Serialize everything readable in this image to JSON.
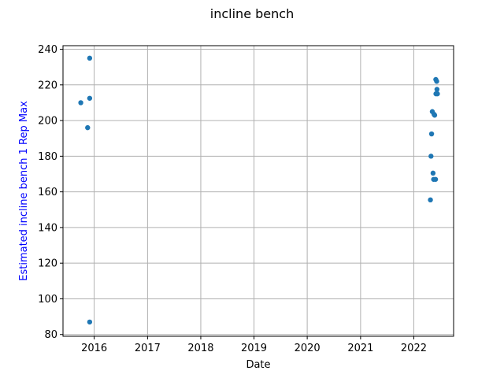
{
  "chart_data": {
    "type": "scatter",
    "title": "incline bench",
    "xlabel": "Date",
    "ylabel": "Estimated incline bench 1 Rep Max",
    "ylabel_color": "#0000ff",
    "point_color": "#1f77b4",
    "xlim": [
      "2015-06-01",
      "2022-10-01"
    ],
    "ylim": [
      79,
      242
    ],
    "x_ticks": [
      {
        "value": "2016-01-01",
        "label": "2016"
      },
      {
        "value": "2017-01-01",
        "label": "2017"
      },
      {
        "value": "2018-01-01",
        "label": "2018"
      },
      {
        "value": "2019-01-01",
        "label": "2019"
      },
      {
        "value": "2020-01-01",
        "label": "2020"
      },
      {
        "value": "2021-01-01",
        "label": "2021"
      },
      {
        "value": "2022-01-01",
        "label": "2022"
      }
    ],
    "y_ticks": [
      80,
      100,
      120,
      140,
      160,
      180,
      200,
      220,
      240
    ],
    "grid": true,
    "legend": "none",
    "points": [
      {
        "x": "2015-10-01",
        "y": 210
      },
      {
        "x": "2015-11-17",
        "y": 196
      },
      {
        "x": "2015-12-01",
        "y": 235
      },
      {
        "x": "2015-12-01",
        "y": 212.5
      },
      {
        "x": "2015-12-01",
        "y": 87
      },
      {
        "x": "2022-04-25",
        "y": 155.5
      },
      {
        "x": "2022-04-29",
        "y": 180
      },
      {
        "x": "2022-05-03",
        "y": 192.5
      },
      {
        "x": "2022-05-08",
        "y": 205
      },
      {
        "x": "2022-05-13",
        "y": 170.5
      },
      {
        "x": "2022-05-17",
        "y": 167
      },
      {
        "x": "2022-05-20",
        "y": 203.5
      },
      {
        "x": "2022-05-24",
        "y": 203
      },
      {
        "x": "2022-05-30",
        "y": 167
      },
      {
        "x": "2022-06-01",
        "y": 223
      },
      {
        "x": "2022-06-02",
        "y": 215
      },
      {
        "x": "2022-06-07",
        "y": 222
      },
      {
        "x": "2022-06-09",
        "y": 217.5
      },
      {
        "x": "2022-06-12",
        "y": 215
      }
    ]
  }
}
